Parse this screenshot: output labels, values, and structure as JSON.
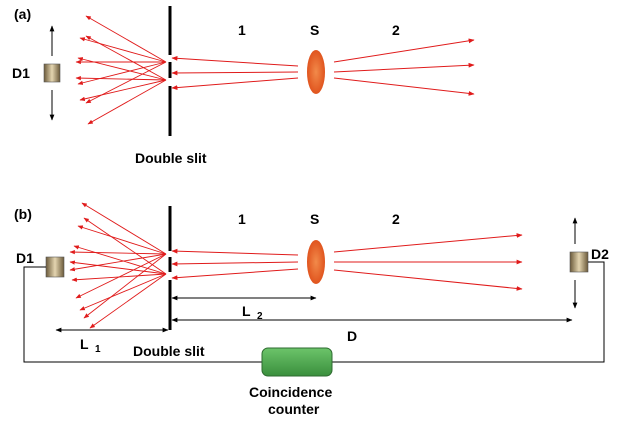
{
  "colors": {
    "ray": "#e01b1b",
    "source": "#e8642a",
    "slit": "#000000",
    "detector": "#c7b48a",
    "counter": "#4caf50"
  },
  "panel_a": {
    "tag": "(a)",
    "detector_label": "D1",
    "arm1_label": "1",
    "source_label": "S",
    "arm2_label": "2",
    "slit_caption": "Double slit"
  },
  "panel_b": {
    "tag": "(b)",
    "detector1_label": "D1",
    "detector2_label": "D2",
    "arm1_label": "1",
    "source_label": "S",
    "arm2_label": "2",
    "l1_label": "L",
    "l1_sub": "1",
    "l2_label": "L",
    "l2_sub": "2",
    "d_label": "D",
    "slit_caption": "Double slit",
    "counter_line1": "Coincidence",
    "counter_line2": "counter"
  }
}
